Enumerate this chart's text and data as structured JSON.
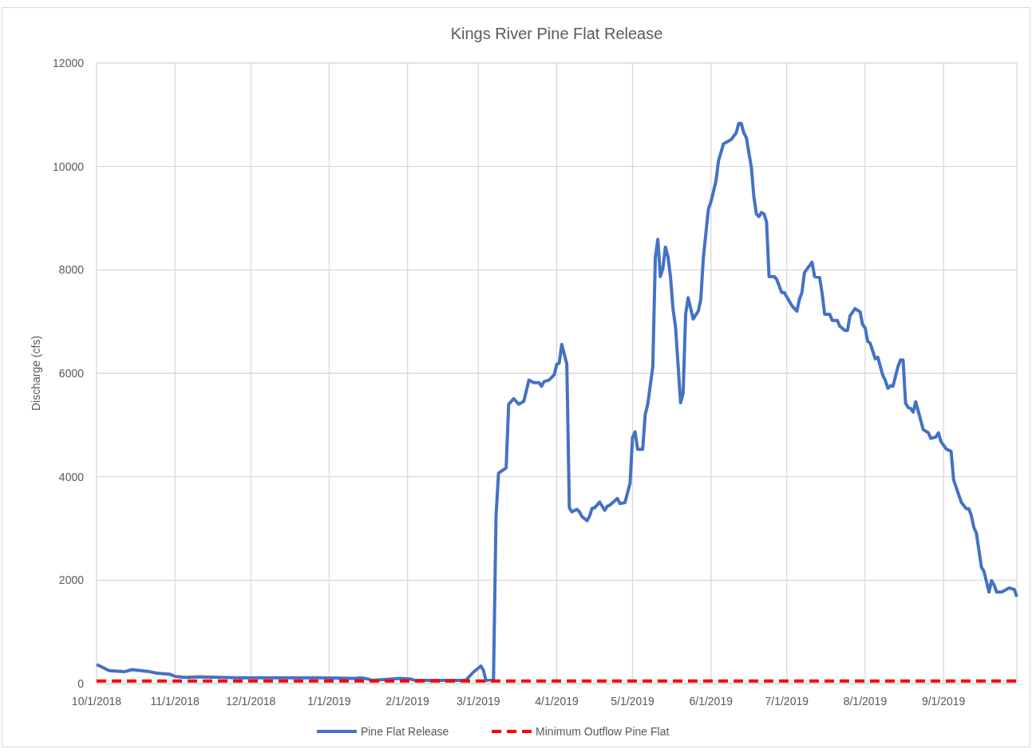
{
  "chart_data": {
    "type": "line",
    "title": "Kings River Pine Flat Release",
    "ylabel": "Discharge (cfs)",
    "xlim": [
      "2018-10-01",
      "2019-09-30"
    ],
    "ylim": [
      0,
      12000
    ],
    "xticks": [
      {
        "value": "2018-10-01",
        "label": "10/1/2018"
      },
      {
        "value": "2018-11-01",
        "label": "11/1/2018"
      },
      {
        "value": "2018-12-01",
        "label": "12/1/2018"
      },
      {
        "value": "2019-01-01",
        "label": "1/1/2019"
      },
      {
        "value": "2019-02-01",
        "label": "2/1/2019"
      },
      {
        "value": "2019-03-01",
        "label": "3/1/2019"
      },
      {
        "value": "2019-04-01",
        "label": "4/1/2019"
      },
      {
        "value": "2019-05-01",
        "label": "5/1/2019"
      },
      {
        "value": "2019-06-01",
        "label": "6/1/2019"
      },
      {
        "value": "2019-07-01",
        "label": "7/1/2019"
      },
      {
        "value": "2019-08-01",
        "label": "8/1/2019"
      },
      {
        "value": "2019-09-01",
        "label": "9/1/2019"
      }
    ],
    "yticks": [
      0,
      2000,
      4000,
      6000,
      8000,
      10000,
      12000
    ],
    "grid": true,
    "legend": "bottom",
    "marker": "none",
    "series": [
      {
        "name": "Pine Flat Release",
        "color": "#4472c4",
        "line_style": "solid",
        "x": [
          "2018-10-01",
          "2018-10-06",
          "2018-10-12",
          "2018-10-15",
          "2018-10-22",
          "2018-10-25",
          "2018-10-30",
          "2018-11-01",
          "2018-11-05",
          "2018-11-11",
          "2018-11-27",
          "2018-12-28",
          "2019-01-11",
          "2019-01-14",
          "2019-01-17",
          "2019-01-18",
          "2019-01-29",
          "2019-02-02",
          "2019-02-04",
          "2019-02-24",
          "2019-02-27",
          "2019-03-02",
          "2019-03-03",
          "2019-03-04",
          "2019-03-07",
          "2019-03-08",
          "2019-03-09",
          "2019-03-12",
          "2019-03-13",
          "2019-03-15",
          "2019-03-17",
          "2019-03-19",
          "2019-03-21",
          "2019-03-23",
          "2019-03-25",
          "2019-03-26",
          "2019-03-27",
          "2019-03-29",
          "2019-03-31",
          "2019-04-01",
          "2019-04-02",
          "2019-04-03",
          "2019-04-05",
          "2019-04-06",
          "2019-04-07",
          "2019-04-09",
          "2019-04-10",
          "2019-04-11",
          "2019-04-13",
          "2019-04-14",
          "2019-04-15",
          "2019-04-16",
          "2019-04-18",
          "2019-04-20",
          "2019-04-21",
          "2019-04-22",
          "2019-04-25",
          "2019-04-26",
          "2019-04-28",
          "2019-04-30",
          "2019-05-01",
          "2019-05-02",
          "2019-05-03",
          "2019-05-05",
          "2019-05-06",
          "2019-05-07",
          "2019-05-09",
          "2019-05-10",
          "2019-05-11",
          "2019-05-12",
          "2019-05-13",
          "2019-05-14",
          "2019-05-15",
          "2019-05-16",
          "2019-05-17",
          "2019-05-18",
          "2019-05-20",
          "2019-05-21",
          "2019-05-22",
          "2019-05-23",
          "2019-05-25",
          "2019-05-27",
          "2019-05-28",
          "2019-05-29",
          "2019-05-31",
          "2019-06-01",
          "2019-06-03",
          "2019-06-04",
          "2019-06-06",
          "2019-06-09",
          "2019-06-11",
          "2019-06-12",
          "2019-06-13",
          "2019-06-14",
          "2019-06-15",
          "2019-06-17",
          "2019-06-18",
          "2019-06-19",
          "2019-06-20",
          "2019-06-21",
          "2019-06-22",
          "2019-06-23",
          "2019-06-24",
          "2019-06-26",
          "2019-06-27",
          "2019-06-29",
          "2019-06-30",
          "2019-07-03",
          "2019-07-05",
          "2019-07-06",
          "2019-07-07",
          "2019-07-08",
          "2019-07-11",
          "2019-07-12",
          "2019-07-14",
          "2019-07-15",
          "2019-07-16",
          "2019-07-18",
          "2019-07-19",
          "2019-07-21",
          "2019-07-22",
          "2019-07-24",
          "2019-07-25",
          "2019-07-26",
          "2019-07-28",
          "2019-07-30",
          "2019-07-31",
          "2019-08-01",
          "2019-08-02",
          "2019-08-03",
          "2019-08-05",
          "2019-08-06",
          "2019-08-08",
          "2019-08-09",
          "2019-08-10",
          "2019-08-11",
          "2019-08-12",
          "2019-08-14",
          "2019-08-15",
          "2019-08-16",
          "2019-08-17",
          "2019-08-18",
          "2019-08-19",
          "2019-08-20",
          "2019-08-21",
          "2019-08-24",
          "2019-08-26",
          "2019-08-27",
          "2019-08-29",
          "2019-08-30",
          "2019-08-31",
          "2019-09-02",
          "2019-09-04",
          "2019-09-05",
          "2019-09-08",
          "2019-09-10",
          "2019-09-11",
          "2019-09-12",
          "2019-09-13",
          "2019-09-14",
          "2019-09-16",
          "2019-09-17",
          "2019-09-19",
          "2019-09-20",
          "2019-09-21",
          "2019-09-22",
          "2019-09-24",
          "2019-09-27",
          "2019-09-29",
          "2019-09-30"
        ],
        "values": [
          370,
          250,
          230,
          270,
          230,
          200,
          180,
          140,
          120,
          130,
          110,
          110,
          100,
          110,
          80,
          60,
          100,
          90,
          60,
          60,
          220,
          340,
          260,
          60,
          80,
          3240,
          4070,
          4170,
          5400,
          5510,
          5400,
          5460,
          5870,
          5820,
          5820,
          5750,
          5840,
          5870,
          5970,
          6170,
          6200,
          6560,
          6180,
          3400,
          3320,
          3370,
          3320,
          3230,
          3150,
          3240,
          3390,
          3400,
          3510,
          3350,
          3430,
          3450,
          3580,
          3480,
          3500,
          3870,
          4760,
          4870,
          4530,
          4530,
          5200,
          5400,
          6120,
          8230,
          8590,
          7870,
          8030,
          8440,
          8260,
          7870,
          7250,
          6900,
          5430,
          5610,
          7150,
          7460,
          7050,
          7200,
          7430,
          8230,
          9180,
          9310,
          9720,
          10110,
          10440,
          10520,
          10650,
          10830,
          10830,
          10650,
          10560,
          9980,
          9410,
          9080,
          9030,
          9110,
          9080,
          8930,
          7870,
          7870,
          7820,
          7560,
          7560,
          7310,
          7200,
          7430,
          7560,
          7950,
          8150,
          7870,
          7850,
          7540,
          7140,
          7140,
          7020,
          7020,
          6910,
          6830,
          6830,
          7110,
          7250,
          7190,
          6940,
          6880,
          6620,
          6580,
          6280,
          6310,
          5960,
          5860,
          5710,
          5760,
          5750,
          6130,
          6260,
          6260,
          5420,
          5340,
          5320,
          5250,
          5450,
          4910,
          4850,
          4740,
          4770,
          4850,
          4680,
          4540,
          4490,
          3940,
          3510,
          3380,
          3380,
          3250,
          3020,
          2910,
          2250,
          2170,
          1770,
          1990,
          1910,
          1770,
          1770,
          1850,
          1820,
          1680
        ]
      },
      {
        "name": "Minimum Outflow Pine Flat",
        "color": "#ff0000",
        "line_style": "dashed",
        "x": [
          "2018-10-01",
          "2019-09-30"
        ],
        "values": [
          50,
          50
        ]
      }
    ]
  }
}
